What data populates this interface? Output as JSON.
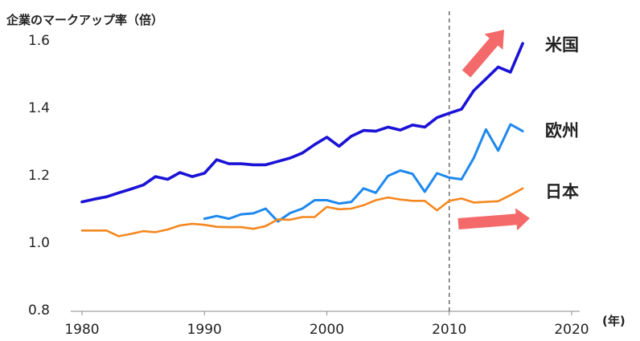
{
  "chart_data": {
    "type": "line",
    "title": "",
    "ylabel": "企業のマークアップ率（倍）",
    "xlabel": "(年)",
    "xlim": [
      1980,
      2020
    ],
    "ylim": [
      0.8,
      1.6
    ],
    "xticks": [
      1980,
      1990,
      2000,
      2010,
      2020
    ],
    "yticks": [
      "0.8",
      "1.0",
      "1.2",
      "1.4",
      "1.6"
    ],
    "reference_line_x": 2010,
    "grid": false,
    "legend": "direct labels at line ends",
    "series": [
      {
        "name": "米国",
        "color": "#1a12d6",
        "x": [
          1980,
          1981,
          1982,
          1983,
          1984,
          1985,
          1986,
          1987,
          1988,
          1989,
          1990,
          1991,
          1992,
          1993,
          1994,
          1995,
          1996,
          1997,
          1998,
          1999,
          2000,
          2001,
          2002,
          2003,
          2004,
          2005,
          2006,
          2007,
          2008,
          2009,
          2010,
          2011,
          2012,
          2013,
          2014,
          2015,
          2016
        ],
        "y": [
          1.12,
          1.128,
          1.135,
          1.147,
          1.158,
          1.17,
          1.195,
          1.187,
          1.207,
          1.195,
          1.205,
          1.245,
          1.233,
          1.233,
          1.23,
          1.23,
          1.24,
          1.25,
          1.265,
          1.29,
          1.312,
          1.285,
          1.315,
          1.332,
          1.33,
          1.342,
          1.333,
          1.348,
          1.342,
          1.37,
          1.383,
          1.395,
          1.45,
          1.485,
          1.52,
          1.505,
          1.59
        ]
      },
      {
        "name": "欧州",
        "color": "#1e88ee",
        "x": [
          1990,
          1991,
          1992,
          1993,
          1994,
          1995,
          1996,
          1997,
          1998,
          1999,
          2000,
          2001,
          2002,
          2003,
          2004,
          2005,
          2006,
          2007,
          2008,
          2009,
          2010,
          2011,
          2012,
          2013,
          2014,
          2015,
          2016
        ],
        "y": [
          1.07,
          1.078,
          1.07,
          1.083,
          1.086,
          1.1,
          1.062,
          1.087,
          1.1,
          1.125,
          1.125,
          1.115,
          1.12,
          1.16,
          1.147,
          1.197,
          1.213,
          1.203,
          1.15,
          1.205,
          1.192,
          1.187,
          1.25,
          1.335,
          1.272,
          1.35,
          1.33
        ]
      },
      {
        "name": "日本",
        "color": "#f5871f",
        "x": [
          1980,
          1981,
          1982,
          1983,
          1984,
          1985,
          1986,
          1987,
          1988,
          1989,
          1990,
          1991,
          1992,
          1993,
          1994,
          1995,
          1996,
          1997,
          1998,
          1999,
          2000,
          2001,
          2002,
          2003,
          2004,
          2005,
          2006,
          2007,
          2008,
          2009,
          2010,
          2011,
          2012,
          2013,
          2014,
          2015,
          2016
        ],
        "y": [
          1.035,
          1.035,
          1.035,
          1.018,
          1.025,
          1.033,
          1.03,
          1.038,
          1.05,
          1.055,
          1.052,
          1.046,
          1.045,
          1.045,
          1.04,
          1.048,
          1.068,
          1.067,
          1.075,
          1.075,
          1.105,
          1.098,
          1.1,
          1.11,
          1.125,
          1.133,
          1.127,
          1.123,
          1.123,
          1.095,
          1.123,
          1.13,
          1.118,
          1.12,
          1.122,
          1.14,
          1.16
        ]
      }
    ],
    "annotations": [
      {
        "kind": "arrow",
        "direction": "up-right",
        "color": "#f46a6a"
      },
      {
        "kind": "arrow",
        "direction": "right",
        "color": "#f46a6a"
      }
    ]
  }
}
